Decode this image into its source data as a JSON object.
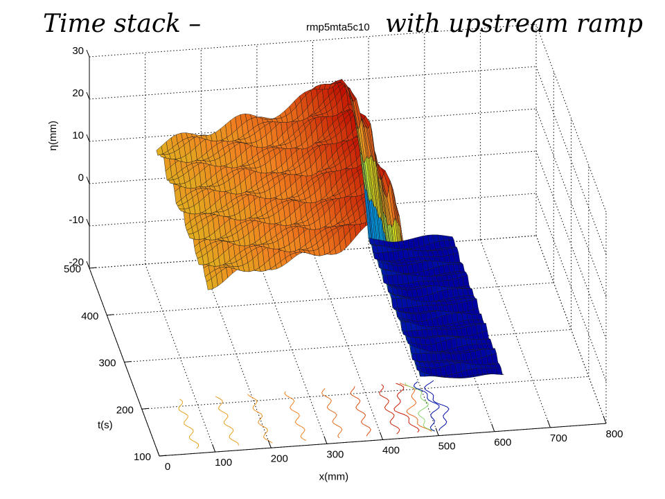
{
  "title": {
    "left": "Time stack –",
    "run_id": "rmp5mta5c10",
    "right": "with upstream ramp"
  },
  "chart_data": {
    "type": "surface",
    "description_axes": {
      "x": {
        "label": "x(mm)",
        "ticks": [
          0,
          100,
          200,
          300,
          400,
          500,
          600,
          700,
          800
        ],
        "range": [
          0,
          800
        ]
      },
      "t": {
        "label": "t(s)",
        "ticks": [
          100,
          200,
          300,
          400,
          500
        ],
        "range": [
          100,
          500
        ]
      },
      "eta": {
        "label": "η(mm)",
        "ticks": [
          -20,
          -10,
          0,
          10,
          20,
          30
        ],
        "range": [
          -20,
          30
        ]
      }
    },
    "grid": true,
    "colormap": "jet",
    "surface_profile": {
      "x": [
        120,
        160,
        200,
        240,
        280,
        320,
        360,
        400,
        430,
        450,
        470,
        480,
        490,
        500,
        540,
        600,
        650
      ],
      "eta": [
        8,
        9,
        10,
        11,
        12,
        13,
        15,
        18,
        20,
        22,
        18,
        10,
        -2,
        -18,
        -19,
        -19,
        -19
      ]
    },
    "surface_colors": {
      "low": "#0000a0",
      "mid_low": "#00c0ff",
      "mid": "#d0e020",
      "mid_high": "#f08020",
      "high": "#c01000"
    }
  }
}
